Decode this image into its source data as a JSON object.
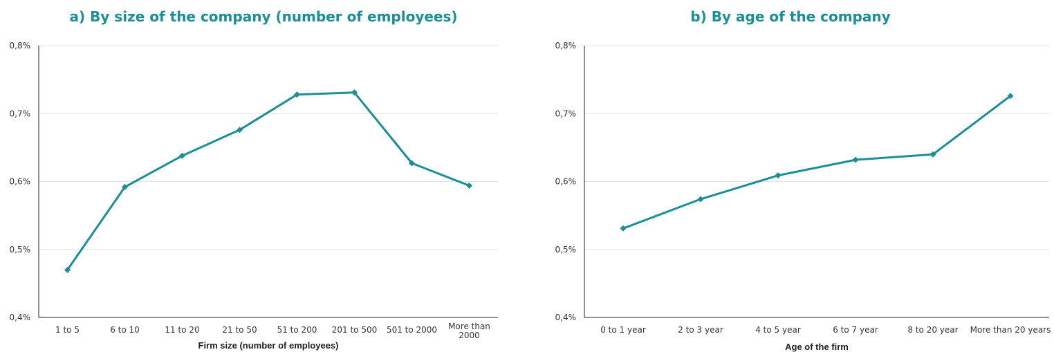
{
  "charts": [
    {
      "title": "a) By size of the company (number of employees)",
      "chart_data": {
        "type": "line",
        "title": "a) By size of the company (number of employees)",
        "xlabel": "Firm size (number of employees)",
        "ylabel": "",
        "categories": [
          "1 to 5",
          "6 to 10",
          "11 to 20",
          "21 to 50",
          "51 to 200",
          "201 to 500",
          "501 to 2000",
          "More than 2000"
        ],
        "series": [
          {
            "values": [
              0.47,
              0.592,
              0.638,
              0.676,
              0.728,
              0.731,
              0.627,
              0.594
            ]
          }
        ],
        "ylim": [
          0.4,
          0.8
        ],
        "yticks": [
          "0,4%",
          "0,5%",
          "0,6%",
          "0,7%",
          "0,8%"
        ],
        "grid": true,
        "color": "#1a8f95"
      }
    },
    {
      "title": "b) By age of the company",
      "chart_data": {
        "type": "line",
        "title": "b) By age of the company",
        "xlabel": "Age of the firm",
        "ylabel": "",
        "categories": [
          "0 to 1 year",
          "2 to 3 year",
          "4 to 5 year",
          "6 to 7 year",
          "8 to 20 year",
          "More than 20 years"
        ],
        "series": [
          {
            "values": [
              0.531,
              0.574,
              0.609,
              0.632,
              0.64,
              0.726
            ]
          }
        ],
        "ylim": [
          0.4,
          0.8
        ],
        "yticks": [
          "0,4%",
          "0,5%",
          "0,6%",
          "0,7%",
          "0,8%"
        ],
        "grid": true,
        "color": "#1a8f95"
      }
    }
  ]
}
